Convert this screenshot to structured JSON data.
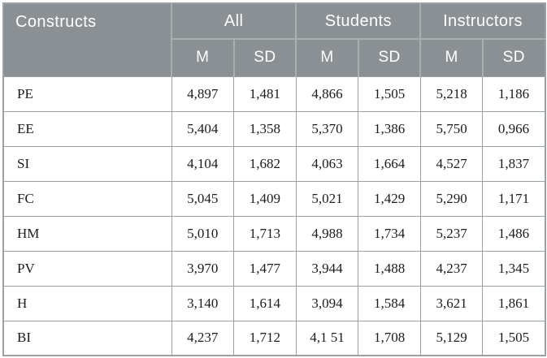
{
  "table": {
    "columns": {
      "constructs": "Constructs",
      "groups": [
        {
          "label": "All",
          "sub": [
            "M",
            "SD"
          ]
        },
        {
          "label": "Students",
          "sub": [
            "M",
            "SD"
          ]
        },
        {
          "label": "Instructors",
          "sub": [
            "M",
            "SD"
          ]
        }
      ]
    },
    "rows": [
      {
        "construct": "PE",
        "values": [
          "4,897",
          "1,481",
          "4,866",
          "1,505",
          "5,218",
          "1,186"
        ]
      },
      {
        "construct": "EE",
        "values": [
          "5,404",
          "1,358",
          "5,370",
          "1,386",
          "5,750",
          "0,966"
        ]
      },
      {
        "construct": "SI",
        "values": [
          "4,104",
          "1,682",
          "4,063",
          "1,664",
          "4,527",
          "1,837"
        ]
      },
      {
        "construct": "FC",
        "values": [
          "5,045",
          "1,409",
          "5,021",
          "1,429",
          "5,290",
          "1,171"
        ]
      },
      {
        "construct": "HM",
        "values": [
          "5,010",
          "1,713",
          "4,988",
          "1,734",
          "5,237",
          "1,486"
        ]
      },
      {
        "construct": "PV",
        "values": [
          "3,970",
          "1,477",
          "3,944",
          "1,488",
          "4,237",
          "1,345"
        ]
      },
      {
        "construct": "H",
        "values": [
          "3,140",
          "1,614",
          "3,094",
          "1,584",
          "3,621",
          "1,861"
        ]
      },
      {
        "construct": "BI",
        "values": [
          "4,237",
          "1,712",
          "4,1 51",
          "1,708",
          "5,129",
          "1,505"
        ]
      }
    ],
    "colors": {
      "header_bg": "#8b9094",
      "header_text": "#ffffff",
      "header_divider": "#a9aeb0",
      "body_border": "#9aa0a3",
      "body_text": "#1c1c1c"
    }
  }
}
